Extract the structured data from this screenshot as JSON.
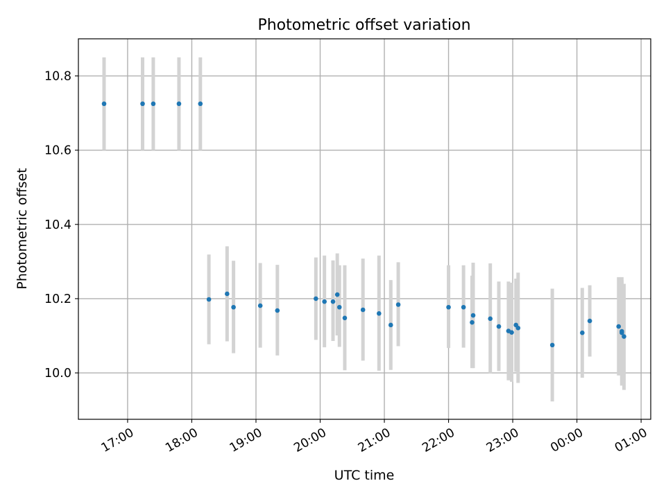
{
  "chart_data": {
    "type": "scatter",
    "title": "Photometric offset variation",
    "xlabel": "UTC time",
    "ylabel": "Photometric offset",
    "xlim": [
      "16:14",
      "01:09"
    ],
    "ylim": [
      9.875,
      10.9
    ],
    "x_ticks": [
      "17:00",
      "18:00",
      "19:00",
      "20:00",
      "21:00",
      "22:00",
      "23:00",
      "00:00",
      "01:00"
    ],
    "y_ticks": [
      "10.0",
      "10.2",
      "10.4",
      "10.6",
      "10.8"
    ],
    "grid": true,
    "point_color": "#1f77b4",
    "errorbar_color": "#d3d3d3",
    "points": [
      {
        "x": "16:38",
        "y": 10.725,
        "ylow": 10.6,
        "yhigh": 10.85
      },
      {
        "x": "17:14",
        "y": 10.725,
        "ylow": 10.6,
        "yhigh": 10.85
      },
      {
        "x": "17:24",
        "y": 10.725,
        "ylow": 10.6,
        "yhigh": 10.85
      },
      {
        "x": "17:48",
        "y": 10.725,
        "ylow": 10.6,
        "yhigh": 10.85
      },
      {
        "x": "18:08",
        "y": 10.725,
        "ylow": 10.6,
        "yhigh": 10.85
      },
      {
        "x": "18:16",
        "y": 10.198,
        "ylow": 10.077,
        "yhigh": 10.319
      },
      {
        "x": "18:33",
        "y": 10.213,
        "ylow": 10.085,
        "yhigh": 10.341
      },
      {
        "x": "18:39",
        "y": 10.177,
        "ylow": 10.053,
        "yhigh": 10.302
      },
      {
        "x": "19:04",
        "y": 10.181,
        "ylow": 10.068,
        "yhigh": 10.296
      },
      {
        "x": "19:20",
        "y": 10.168,
        "ylow": 10.047,
        "yhigh": 10.291
      },
      {
        "x": "19:56",
        "y": 10.2,
        "ylow": 10.089,
        "yhigh": 10.311
      },
      {
        "x": "20:04",
        "y": 10.192,
        "ylow": 10.069,
        "yhigh": 10.316
      },
      {
        "x": "20:12",
        "y": 10.192,
        "ylow": 10.086,
        "yhigh": 10.303
      },
      {
        "x": "20:16",
        "y": 10.211,
        "ylow": 10.101,
        "yhigh": 10.322
      },
      {
        "x": "20:18",
        "y": 10.177,
        "ylow": 10.07,
        "yhigh": 10.29
      },
      {
        "x": "20:23",
        "y": 10.148,
        "ylow": 10.007,
        "yhigh": 10.29
      },
      {
        "x": "20:40",
        "y": 10.17,
        "ylow": 10.033,
        "yhigh": 10.308
      },
      {
        "x": "20:55",
        "y": 10.16,
        "ylow": 10.006,
        "yhigh": 10.316
      },
      {
        "x": "21:06",
        "y": 10.129,
        "ylow": 10.008,
        "yhigh": 10.25
      },
      {
        "x": "21:13",
        "y": 10.184,
        "ylow": 10.072,
        "yhigh": 10.298
      },
      {
        "x": "22:00",
        "y": 10.177,
        "ylow": 10.067,
        "yhigh": 10.29
      },
      {
        "x": "22:14",
        "y": 10.177,
        "ylow": 10.068,
        "yhigh": 10.29
      },
      {
        "x": "22:22",
        "y": 10.136,
        "ylow": 10.013,
        "yhigh": 10.262
      },
      {
        "x": "22:23",
        "y": 10.155,
        "ylow": 10.013,
        "yhigh": 10.297
      },
      {
        "x": "22:39",
        "y": 10.146,
        "ylow": 9.998,
        "yhigh": 10.295
      },
      {
        "x": "22:47",
        "y": 10.125,
        "ylow": 10.005,
        "yhigh": 10.246
      },
      {
        "x": "22:56",
        "y": 10.113,
        "ylow": 9.98,
        "yhigh": 10.246
      },
      {
        "x": "22:59",
        "y": 10.109,
        "ylow": 9.976,
        "yhigh": 10.243
      },
      {
        "x": "23:03",
        "y": 10.129,
        "ylow": 10.003,
        "yhigh": 10.254
      },
      {
        "x": "23:05",
        "y": 10.121,
        "ylow": 9.973,
        "yhigh": 10.27
      },
      {
        "x": "23:37",
        "y": 10.075,
        "ylow": 9.923,
        "yhigh": 10.227
      },
      {
        "x": "00:05",
        "y": 10.108,
        "ylow": 9.987,
        "yhigh": 10.229
      },
      {
        "x": "00:12",
        "y": 10.14,
        "ylow": 10.044,
        "yhigh": 10.236
      },
      {
        "x": "00:39",
        "y": 10.125,
        "ylow": 9.993,
        "yhigh": 10.258
      },
      {
        "x": "00:42",
        "y": 10.112,
        "ylow": 9.966,
        "yhigh": 10.258
      },
      {
        "x": "00:42",
        "y": 10.108,
        "ylow": 9.966,
        "yhigh": 10.25
      },
      {
        "x": "00:44",
        "y": 10.098,
        "ylow": 9.954,
        "yhigh": 10.24
      }
    ]
  }
}
